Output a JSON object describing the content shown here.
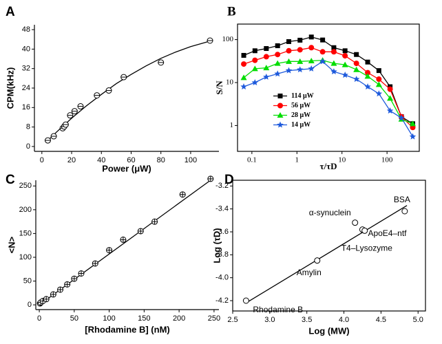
{
  "chart_data": [
    {
      "panel": "A",
      "type": "scatter",
      "xlabel": "Power (μW)",
      "ylabel": "CPM(kHz)",
      "x": [
        4,
        8,
        14,
        15,
        16,
        19,
        22,
        26,
        37,
        45,
        55,
        80,
        113
      ],
      "values": [
        2.5,
        4.2,
        7.5,
        8.2,
        9,
        12.8,
        14.5,
        16.5,
        21,
        23,
        28.5,
        34.5,
        43.5
      ],
      "fit": {
        "x": [
          3,
          10,
          20,
          30,
          40,
          50,
          60,
          70,
          80,
          90,
          100,
          113
        ],
        "values": [
          1.8,
          6.0,
          11.6,
          16.7,
          21.4,
          25.8,
          29.6,
          33.1,
          36.2,
          38.8,
          41.0,
          43.3
        ]
      },
      "marker": "circle-minus",
      "xlim": [
        -5,
        119
      ],
      "ylim": [
        -2,
        50
      ],
      "xticks": [
        0,
        20,
        40,
        60,
        80,
        100
      ],
      "yticks": [
        0,
        8,
        16,
        24,
        32,
        40,
        48
      ]
    },
    {
      "panel": "B",
      "type": "line",
      "xlabel": "τ/τD",
      "ylabel": "S/N",
      "log_x": true,
      "log_y": true,
      "box": true,
      "legend": "middle-left",
      "x": [
        0.066,
        0.117,
        0.209,
        0.372,
        0.66,
        1.17,
        2.09,
        3.72,
        6.6,
        11.7,
        20.9,
        37.2,
        66,
        117,
        209,
        372
      ],
      "series": [
        {
          "name": "114 μW",
          "color": "#000000",
          "marker": "square",
          "values": [
            43,
            55,
            62,
            72,
            90,
            97,
            115,
            98,
            65,
            55,
            45,
            30,
            19,
            8,
            1.6,
            1.1
          ]
        },
        {
          "name": "56 μW",
          "color": "#ff0000",
          "marker": "circle",
          "values": [
            27,
            33,
            40,
            45,
            55,
            58,
            65,
            52,
            52,
            42,
            28,
            17,
            12,
            7,
            1.6,
            0.9
          ]
        },
        {
          "name": "28 μW",
          "color": "#00dd00",
          "marker": "triangle",
          "values": [
            13,
            21,
            22,
            28,
            31,
            31,
            32,
            33,
            28,
            26,
            20,
            14,
            9,
            4.3,
            1.4,
            1.1
          ]
        },
        {
          "name": "14 μW",
          "color": "#1e5adc",
          "marker": "star",
          "values": [
            8,
            10,
            13.5,
            16,
            19,
            20,
            21,
            31,
            18,
            15,
            12,
            8,
            5.5,
            2.2,
            1.5,
            0.55
          ]
        }
      ],
      "xlim": [
        0.048,
        520
      ],
      "ylim": [
        0.25,
        230
      ],
      "xticks": [
        0.1,
        1,
        10,
        100
      ],
      "yticks": [
        1,
        10,
        100
      ]
    },
    {
      "panel": "C",
      "type": "scatter",
      "xlabel": "[Rhodamine B] (nM)",
      "ylabel": "<N>",
      "x": [
        1,
        2,
        5,
        10,
        20,
        30,
        40,
        50,
        60,
        80,
        100,
        120,
        145,
        165,
        205,
        245
      ],
      "values": [
        3,
        5,
        8,
        12,
        22,
        32,
        43,
        55,
        66,
        87,
        115,
        137,
        155,
        175,
        232,
        265
      ],
      "fit": {
        "x": [
          0,
          245
        ],
        "values": [
          0,
          262
        ]
      },
      "marker": "circle-plus",
      "xlim": [
        -5,
        257
      ],
      "ylim": [
        -10,
        262
      ],
      "xticks": [
        0,
        50,
        100,
        150,
        200,
        250
      ],
      "yticks": [
        0,
        50,
        100,
        150,
        200,
        250
      ]
    },
    {
      "panel": "D",
      "type": "scatter",
      "xlabel": "Log (MW)",
      "ylabel": "Log (τD)",
      "box": true,
      "x": [
        2.68,
        3.64,
        4.15,
        4.25,
        4.28,
        4.82
      ],
      "values": [
        -4.2,
        -3.85,
        -3.52,
        -3.58,
        -3.59,
        -3.42
      ],
      "point_labels": [
        "Rhodamine B",
        "Amylin",
        "α-synuclein",
        "ApoE4–ntf",
        "T4–Lysozyme",
        "BSA"
      ],
      "fit": {
        "x": [
          2.68,
          4.85
        ],
        "values": [
          -4.22,
          -3.37
        ]
      },
      "marker": "circle",
      "xlim": [
        2.5,
        5.1
      ],
      "ylim": [
        -4.29,
        -3.15
      ],
      "xticks": [
        2.5,
        {
          "value": 3,
          "label": "3.0"
        },
        3.5,
        {
          "value": 4,
          "label": "4.0"
        },
        4.5,
        {
          "value": 5,
          "label": "5.0"
        }
      ],
      "yticks": [
        -4.2,
        {
          "value": -4,
          "label": "-4.0"
        },
        -3.8,
        -3.6,
        -3.4,
        -3.2
      ]
    }
  ]
}
